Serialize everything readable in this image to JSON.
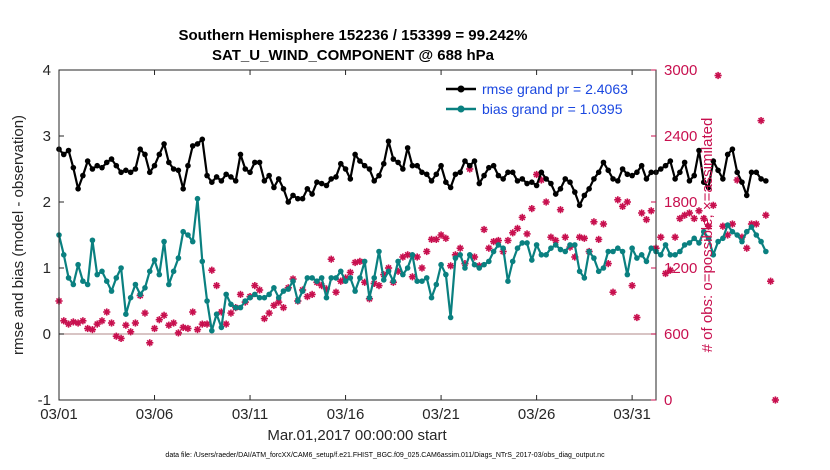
{
  "chart_data": {
    "type": "line",
    "title_line1": "Southern Hemisphere 152236 / 153399 = 99.242%",
    "title_line2": "SAT_U_WIND_COMPONENT @ 688 hPa",
    "xlabel": "Mar.01,2017 00:00:00 start",
    "ylabel_left": "rmse and bias (model - observation)",
    "ylabel_right": "# of obs: o=possible; ×=assimilated",
    "footnote": "data file: /Users/raeder/DAI/ATM_forcXX/CAM6_setup/f.e21.FHIST_BGC.f09_025.CAM6assim.011/Diags_NTrS_2017-03/obs_diag_output.nc",
    "x_tick_labels": [
      "03/01",
      "03/06",
      "03/11",
      "03/16",
      "03/21",
      "03/26",
      "03/31"
    ],
    "x_tick_days": [
      1,
      6,
      11,
      16,
      21,
      26,
      31
    ],
    "xlim_days": [
      1,
      32.25
    ],
    "ylim_left": [
      -1,
      4
    ],
    "y_ticks_left": [
      "-1",
      "0",
      "1",
      "2",
      "3",
      "4"
    ],
    "ylim_right": [
      0,
      3000
    ],
    "y_ticks_right": [
      "0",
      "600",
      "1200",
      "1800",
      "2400",
      "3000"
    ],
    "zero_line": 0,
    "colors": {
      "rmse": "#000000",
      "bias": "#0a8080",
      "obs": "#c8104f",
      "zero_line": "#c0a0a0",
      "legend_text": "#1a47e0",
      "axis": "#262626"
    },
    "series": [
      {
        "name": "rmse grand pr = 2.4063",
        "key": "rmse",
        "axis": "left",
        "start_day": 1,
        "step_days": 0.25,
        "values": [
          2.8,
          2.72,
          2.78,
          2.52,
          2.2,
          2.4,
          2.62,
          2.5,
          2.55,
          2.52,
          2.6,
          2.65,
          2.55,
          2.45,
          2.48,
          2.45,
          2.5,
          2.8,
          2.72,
          2.45,
          2.55,
          2.72,
          2.88,
          2.6,
          2.5,
          2.48,
          2.2,
          2.55,
          2.85,
          2.88,
          2.95,
          2.4,
          2.3,
          2.38,
          2.32,
          2.42,
          2.38,
          2.32,
          2.72,
          2.5,
          2.45,
          2.6,
          2.6,
          2.32,
          2.4,
          2.22,
          2.35,
          2.2,
          2.0,
          2.1,
          2.05,
          2.05,
          2.2,
          2.12,
          2.3,
          2.28,
          2.25,
          2.35,
          2.38,
          2.58,
          2.5,
          2.35,
          2.72,
          2.62,
          2.55,
          2.5,
          2.32,
          2.4,
          2.58,
          2.92,
          2.65,
          2.6,
          2.5,
          2.82,
          2.55,
          2.55,
          2.45,
          2.42,
          2.32,
          2.42,
          2.55,
          2.3,
          2.22,
          2.42,
          2.45,
          2.62,
          2.55,
          2.62,
          2.28,
          2.4,
          2.52,
          2.55,
          2.4,
          2.35,
          2.45,
          2.45,
          2.32,
          2.35,
          2.28,
          2.3,
          2.25,
          2.45,
          2.35,
          2.28,
          2.12,
          2.2,
          2.35,
          2.3,
          2.15,
          1.95,
          2.1,
          2.2,
          2.35,
          2.45,
          2.6,
          2.48,
          2.35,
          2.32,
          2.5,
          2.42,
          2.4,
          2.45,
          2.55,
          2.35,
          2.45,
          2.45,
          2.5,
          2.55,
          2.62,
          2.35,
          2.45,
          2.6,
          2.32,
          2.4,
          2.78,
          2.3,
          2.22,
          2.62,
          2.48,
          2.35,
          2.72,
          2.8,
          2.45,
          2.3,
          2.1,
          2.45,
          2.45,
          2.35,
          2.32
        ]
      },
      {
        "name": "bias grand pr = 1.0395",
        "key": "bias",
        "axis": "left",
        "start_day": 1,
        "step_days": 0.25,
        "values": [
          1.5,
          1.2,
          0.85,
          0.75,
          1.05,
          0.8,
          0.75,
          1.42,
          0.9,
          0.95,
          0.8,
          0.65,
          0.85,
          1.0,
          0.3,
          0.55,
          0.75,
          0.6,
          0.7,
          0.95,
          1.12,
          0.9,
          1.4,
          0.75,
          0.95,
          1.15,
          1.55,
          1.5,
          1.4,
          2.05,
          1.1,
          0.5,
          0.05,
          0.3,
          0.1,
          0.6,
          0.45,
          0.4,
          0.4,
          0.5,
          0.55,
          0.6,
          0.55,
          0.55,
          0.6,
          0.7,
          0.55,
          0.65,
          0.68,
          0.8,
          0.5,
          0.65,
          0.85,
          0.85,
          0.8,
          0.85,
          0.55,
          0.85,
          0.85,
          0.95,
          0.8,
          0.85,
          0.65,
          0.85,
          1.1,
          0.55,
          0.85,
          1.25,
          0.82,
          0.95,
          0.8,
          1.1,
          0.9,
          1.0,
          1.2,
          0.8,
          0.8,
          0.85,
          0.55,
          0.75,
          1.05,
          0.9,
          0.25,
          1.15,
          1.2,
          1.0,
          1.2,
          1.05,
          1.0,
          1.05,
          1.1,
          1.25,
          1.35,
          1.3,
          0.8,
          1.1,
          1.3,
          1.38,
          1.38,
          1.12,
          1.35,
          1.2,
          1.2,
          1.3,
          1.35,
          1.28,
          1.25,
          1.35,
          1.35,
          0.95,
          0.85,
          1.25,
          1.15,
          0.95,
          1.0,
          1.25,
          1.25,
          1.3,
          1.25,
          0.9,
          1.3,
          1.15,
          1.2,
          1.1,
          1.3,
          1.25,
          1.2,
          1.35,
          1.2,
          1.2,
          1.25,
          1.35,
          1.38,
          1.45,
          1.38,
          1.55,
          1.45,
          1.2,
          1.4,
          1.45,
          1.65,
          1.55,
          1.5,
          1.4,
          1.55,
          1.62,
          1.5,
          1.4,
          1.25
        ]
      },
      {
        "name": "obs assimilated",
        "key": "obs",
        "axis": "right",
        "start_day": 1,
        "step_days": 0.25,
        "values": [
          900,
          720,
          690,
          710,
          700,
          720,
          650,
          640,
          690,
          720,
          800,
          700,
          580,
          560,
          680,
          620,
          700,
          950,
          790,
          520,
          650,
          730,
          770,
          680,
          700,
          610,
          660,
          650,
          800,
          640,
          690,
          690,
          1180,
          1040,
          800,
          690,
          790,
          840,
          960,
          890,
          940,
          1040,
          1000,
          740,
          790,
          860,
          890,
          840,
          1020,
          1100,
          900,
          1000,
          940,
          960,
          1070,
          1040,
          1010,
          1280,
          980,
          1080,
          1110,
          1160,
          1250,
          1260,
          1070,
          920,
          1060,
          1040,
          1140,
          1200,
          1070,
          1170,
          1300,
          1320,
          1120,
          1300,
          1200,
          1350,
          1460,
          1460,
          1500,
          1470,
          1220,
          1320,
          1380,
          1240,
          2100,
          1300,
          1220,
          1550,
          1380,
          1440,
          1450,
          1350,
          1450,
          1520,
          1560,
          1660,
          1510,
          1740,
          2050,
          2000,
          1800,
          1480,
          1450,
          1730,
          1480,
          1390,
          1300,
          1480,
          1470,
          1350,
          1620,
          1460,
          1600,
          1240,
          980,
          1820,
          1760,
          1800,
          1040,
          750,
          1700,
          1640,
          1720,
          1380,
          1480,
          1150,
          1180,
          1480,
          1650,
          1680,
          1700,
          1650,
          1720,
          1650,
          1580,
          1770,
          2950,
          1580,
          1500,
          1600,
          2000,
          1480,
          1380,
          1600,
          1600,
          2540,
          1680,
          1080,
          0
        ]
      }
    ]
  }
}
